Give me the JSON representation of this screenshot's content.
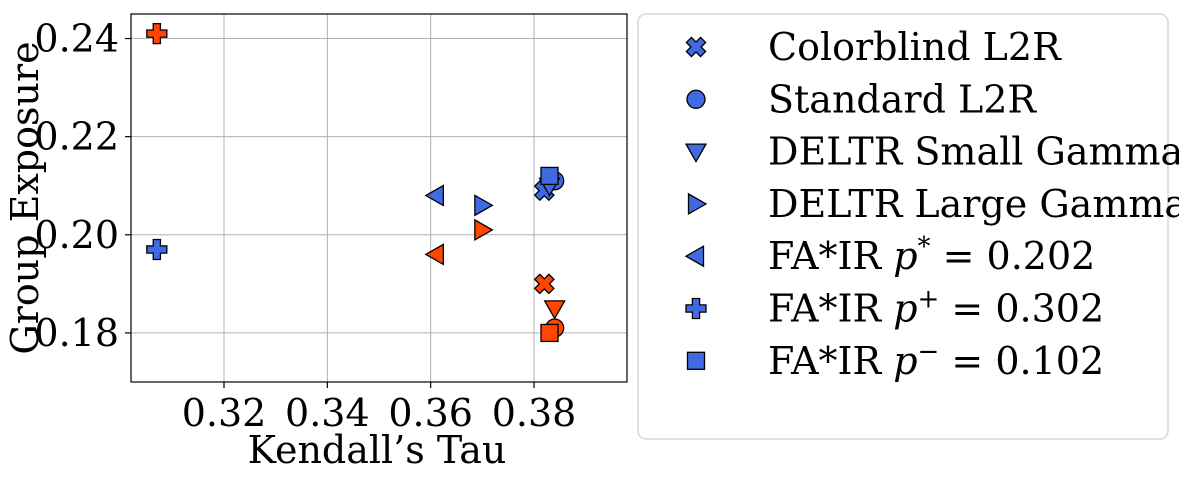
{
  "chart_data": {
    "type": "scatter",
    "xlabel": "Kendall’s Tau",
    "ylabel": "Group Exposure",
    "xlim": [
      0.302,
      0.398
    ],
    "ylim": [
      0.17,
      0.245
    ],
    "x_ticks": [
      "0.32",
      "0.34",
      "0.36",
      "0.38"
    ],
    "y_ticks": [
      "0.18",
      "0.20",
      "0.22",
      "0.24"
    ],
    "grid": true,
    "legend_placement": "outside-right",
    "colors": {
      "blue": "#4169e1",
      "orange": "#ff4500",
      "edge": "#000000"
    },
    "series": [
      {
        "name": "Colorblind L2R",
        "marker": "x-cross",
        "points": [
          {
            "x": 0.382,
            "y": 0.209,
            "color": "blue"
          },
          {
            "x": 0.382,
            "y": 0.19,
            "color": "orange"
          }
        ]
      },
      {
        "name": "Standard L2R",
        "marker": "circle",
        "points": [
          {
            "x": 0.384,
            "y": 0.211,
            "color": "blue"
          },
          {
            "x": 0.384,
            "y": 0.181,
            "color": "orange"
          }
        ]
      },
      {
        "name": "DELTR Small Gamma",
        "marker": "triangle-down",
        "points": [
          {
            "x": 0.383,
            "y": 0.21,
            "color": "blue"
          },
          {
            "x": 0.384,
            "y": 0.185,
            "color": "orange"
          }
        ]
      },
      {
        "name": "DELTR Large Gamma",
        "marker": "triangle-right",
        "points": [
          {
            "x": 0.37,
            "y": 0.206,
            "color": "blue"
          },
          {
            "x": 0.37,
            "y": 0.201,
            "color": "orange"
          }
        ]
      },
      {
        "name": "FA*IR p* = 0.202",
        "marker": "triangle-left",
        "points": [
          {
            "x": 0.361,
            "y": 0.208,
            "color": "blue"
          },
          {
            "x": 0.361,
            "y": 0.196,
            "color": "orange"
          }
        ]
      },
      {
        "name": "FA*IR p+ = 0.302",
        "marker": "plus",
        "points": [
          {
            "x": 0.307,
            "y": 0.197,
            "color": "blue"
          },
          {
            "x": 0.307,
            "y": 0.241,
            "color": "orange"
          }
        ]
      },
      {
        "name": "FA*IR p− = 0.102",
        "marker": "square",
        "points": [
          {
            "x": 0.383,
            "y": 0.212,
            "color": "blue"
          },
          {
            "x": 0.383,
            "y": 0.18,
            "color": "orange"
          }
        ]
      }
    ],
    "legend": [
      {
        "prefix": "Colorblind L2R",
        "sup": "",
        "suffix": "",
        "marker": "x-cross"
      },
      {
        "prefix": "Standard L2R",
        "sup": "",
        "suffix": "",
        "marker": "circle"
      },
      {
        "prefix": "DELTR Small Gamma",
        "sup": "",
        "suffix": "",
        "marker": "triangle-down"
      },
      {
        "prefix": "DELTR Large Gamma",
        "sup": "",
        "suffix": "",
        "marker": "triangle-right"
      },
      {
        "prefix": "FA*IR ",
        "var": "p",
        "sup": "*",
        "suffix": " = 0.202",
        "marker": "triangle-left"
      },
      {
        "prefix": "FA*IR ",
        "var": "p",
        "sup": "+",
        "suffix": " = 0.302",
        "marker": "plus"
      },
      {
        "prefix": "FA*IR ",
        "var": "p",
        "sup": "−",
        "suffix": " = 0.102",
        "marker": "square"
      }
    ]
  }
}
